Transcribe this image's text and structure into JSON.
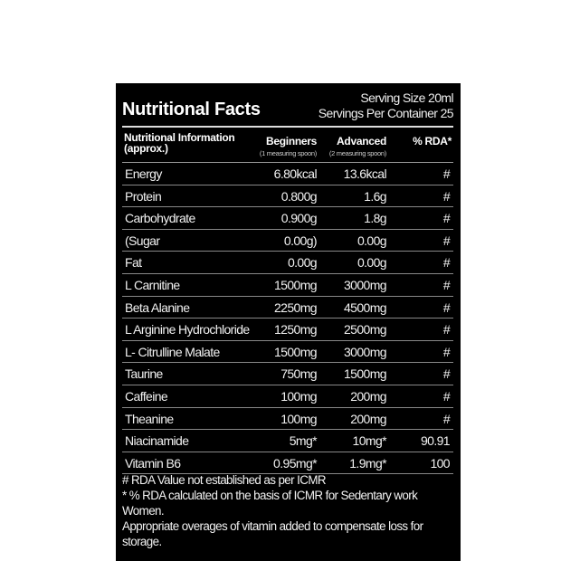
{
  "title": "Nutritional Facts",
  "serving_size": "Serving Size 20ml",
  "servings_per_container": "Servings Per Container 25",
  "headers": {
    "info": "Nutritional Information",
    "info2": "(approx.)",
    "beginners": "Beginners",
    "beginners_sub": "(1 measuring spoon)",
    "advanced": "Advanced",
    "advanced_sub": "(2 measuring spoon)",
    "rda": "% RDA*"
  },
  "rows": [
    {
      "name": "Energy",
      "beginners": "6.80kcal",
      "advanced": "13.6kcal",
      "rda": "#"
    },
    {
      "name": "Protein",
      "beginners": "0.800g",
      "advanced": "1.6g",
      "rda": "#"
    },
    {
      "name": "Carbohydrate",
      "beginners": "0.900g",
      "advanced": "1.8g",
      "rda": "#"
    },
    {
      "name": "(Sugar",
      "beginners": "0.00g)",
      "advanced": "0.00g",
      "rda": "#"
    },
    {
      "name": "Fat",
      "beginners": "0.00g",
      "advanced": "0.00g",
      "rda": "#"
    },
    {
      "name": "L Carnitine",
      "beginners": "1500mg",
      "advanced": "3000mg",
      "rda": "#"
    },
    {
      "name": "Beta Alanine",
      "beginners": "2250mg",
      "advanced": "4500mg",
      "rda": "#"
    },
    {
      "name": "L Arginine Hydrochloride",
      "beginners": "1250mg",
      "advanced": "2500mg",
      "rda": "#"
    },
    {
      "name": "L- Citrulline Malate",
      "beginners": "1500mg",
      "advanced": "3000mg",
      "rda": "#"
    },
    {
      "name": "Taurine",
      "beginners": "750mg",
      "advanced": "1500mg",
      "rda": "#"
    },
    {
      "name": "Caffeine",
      "beginners": "100mg",
      "advanced": "200mg",
      "rda": "#"
    },
    {
      "name": "Theanine",
      "beginners": "100mg",
      "advanced": "200mg",
      "rda": "#"
    },
    {
      "name": "Niacinamide",
      "beginners": "5mg*",
      "advanced": "10mg*",
      "rda": "90.91"
    },
    {
      "name": "Vitamin B6",
      "beginners": "0.95mg*",
      "advanced": "1.9mg*",
      "rda": "100"
    }
  ],
  "notes": [
    "# RDA Value not established as per ICMR",
    "* % RDA calculated on the basis of ICMR for Sedentary work Women.",
    "Appropriate overages of vitamin added to compensate loss for storage."
  ]
}
